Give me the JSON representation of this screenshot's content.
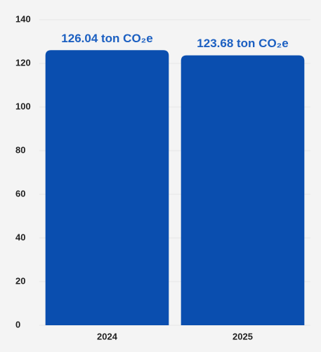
{
  "chart_data": {
    "type": "bar",
    "categories": [
      "2024",
      "2025"
    ],
    "values": [
      126.04,
      123.68
    ],
    "value_labels": [
      "126.04 ton CO₂e",
      "123.68 ton CO₂e"
    ],
    "color": "#0a4eaf",
    "ylim": [
      0,
      140
    ],
    "yticks": [
      0,
      20,
      40,
      60,
      80,
      100,
      120,
      140
    ],
    "grid": true
  }
}
